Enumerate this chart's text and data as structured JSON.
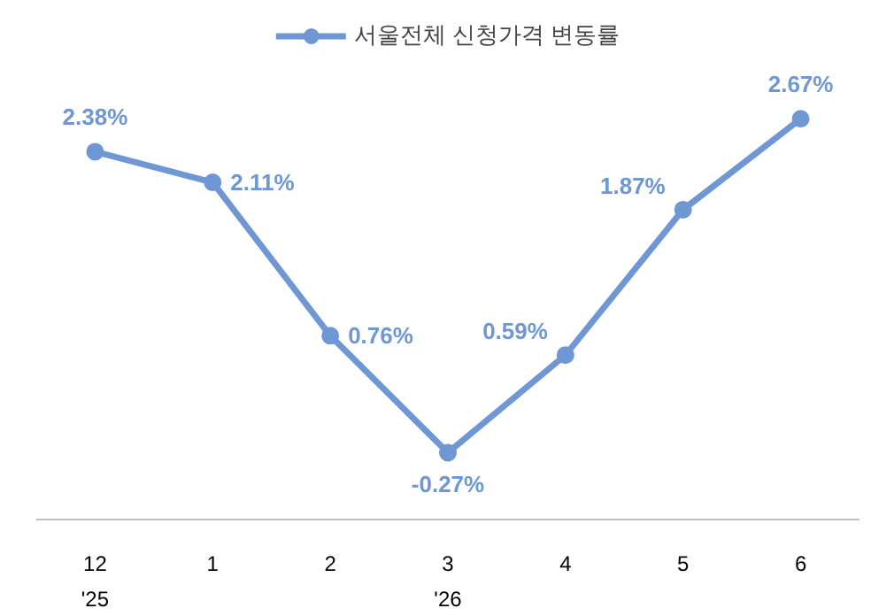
{
  "chart_data": {
    "type": "line",
    "categories": [
      "12",
      "1",
      "2",
      "3",
      "4",
      "5",
      "6"
    ],
    "series": [
      {
        "name": "서울전체 신청가격 변동률",
        "color": "#6f97d4",
        "values": [
          2.38,
          2.11,
          0.76,
          -0.27,
          0.59,
          1.87,
          2.67
        ],
        "value_labels": [
          "2.38%",
          "2.11%",
          "0.76%",
          "-0.27%",
          "0.59%",
          "1.87%",
          "2.67%"
        ]
      }
    ],
    "annotations": [
      "'25",
      "'26"
    ],
    "marker": "circle",
    "legend": "top",
    "grid": false
  }
}
